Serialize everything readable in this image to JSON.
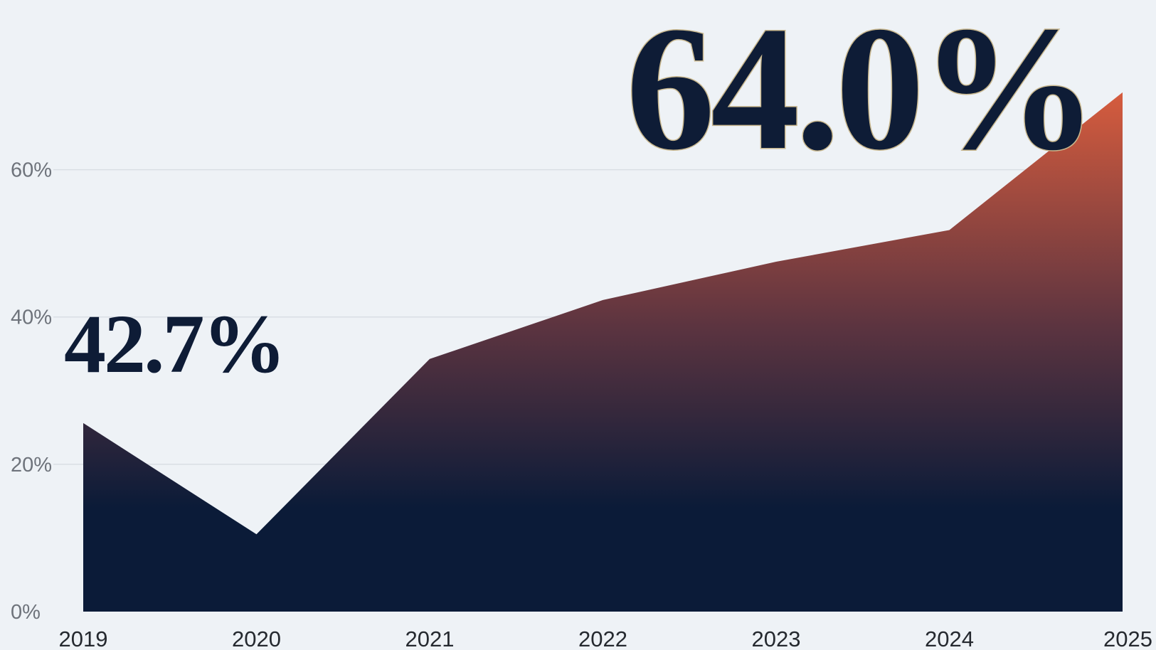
{
  "chart_data": {
    "type": "area",
    "x": [
      "2019",
      "2020",
      "2021",
      "2022",
      "2023",
      "2024",
      "2025"
    ],
    "series": [
      {
        "values": [
          25.6,
          10.5,
          34.3,
          42.3,
          47.5,
          51.8,
          70.5
        ]
      }
    ],
    "ylim": [
      0,
      70
    ],
    "yticks": [
      0,
      20,
      40,
      60
    ],
    "ytick_labels": [
      "0%",
      "20%",
      "40%",
      "60%"
    ],
    "xtick_labels": [
      "2019",
      "2020",
      "2021",
      "2022",
      "2023",
      "2024",
      "2025"
    ],
    "grid": true,
    "colors": {
      "area_top": "#D65C3E",
      "area_mid": "#5C3440",
      "area_bottom": "#0B1B38",
      "callout": "#0E1C36",
      "callout_outline": "#C8B78E"
    },
    "annotations": [
      {
        "text": "42.7%"
      },
      {
        "text": "64.0%"
      }
    ]
  }
}
